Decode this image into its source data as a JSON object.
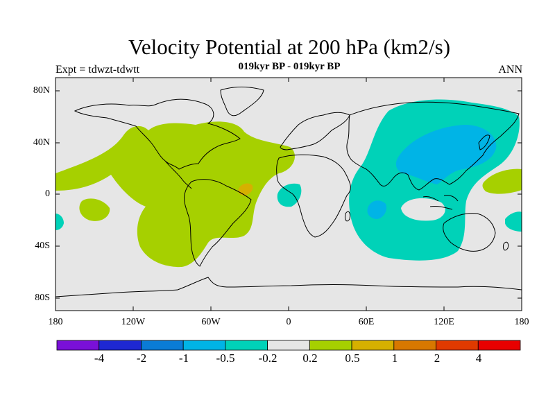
{
  "title": "Velocity Potential at 200 hPa (km2/s)",
  "subtitle": "019kyr BP - 019kyr BP",
  "left_label": "Expt = tdwzt-tdwtt",
  "right_label": "ANN",
  "lat_labels": [
    "80N",
    "40N",
    "0",
    "40S",
    "80S"
  ],
  "lon_labels": [
    "180",
    "120W",
    "60W",
    "0",
    "60E",
    "120E",
    "180"
  ],
  "colorbar": {
    "colors": [
      "#7a10d8",
      "#1e28d2",
      "#0a7cd6",
      "#00b4e6",
      "#00d2b8",
      "#e6e6e6",
      "#a6d000",
      "#d6b000",
      "#d87800",
      "#e03a00",
      "#e80000"
    ],
    "labels": [
      "-4",
      "-2",
      "-1",
      "-0.5",
      "-0.2",
      "0.2",
      "0.5",
      "1",
      "2",
      "4"
    ]
  },
  "map": {
    "background": "#e6e6e6",
    "regions": [
      {
        "name": "positive-anomaly-americas-atlantic",
        "value_range": "0.2 to 0.5",
        "color": "#a6d000"
      },
      {
        "name": "positive-anomaly-atlantic-maximum",
        "value_range": "0.5 to 1",
        "color": "#d6b000"
      },
      {
        "name": "negative-anomaly-asia-indian-ocean",
        "value_range": "-0.5 to -0.2",
        "color": "#00d2b8"
      },
      {
        "name": "negative-anomaly-east-asia-core",
        "value_range": "-1 to -0.5",
        "color": "#00b4e6"
      }
    ]
  }
}
